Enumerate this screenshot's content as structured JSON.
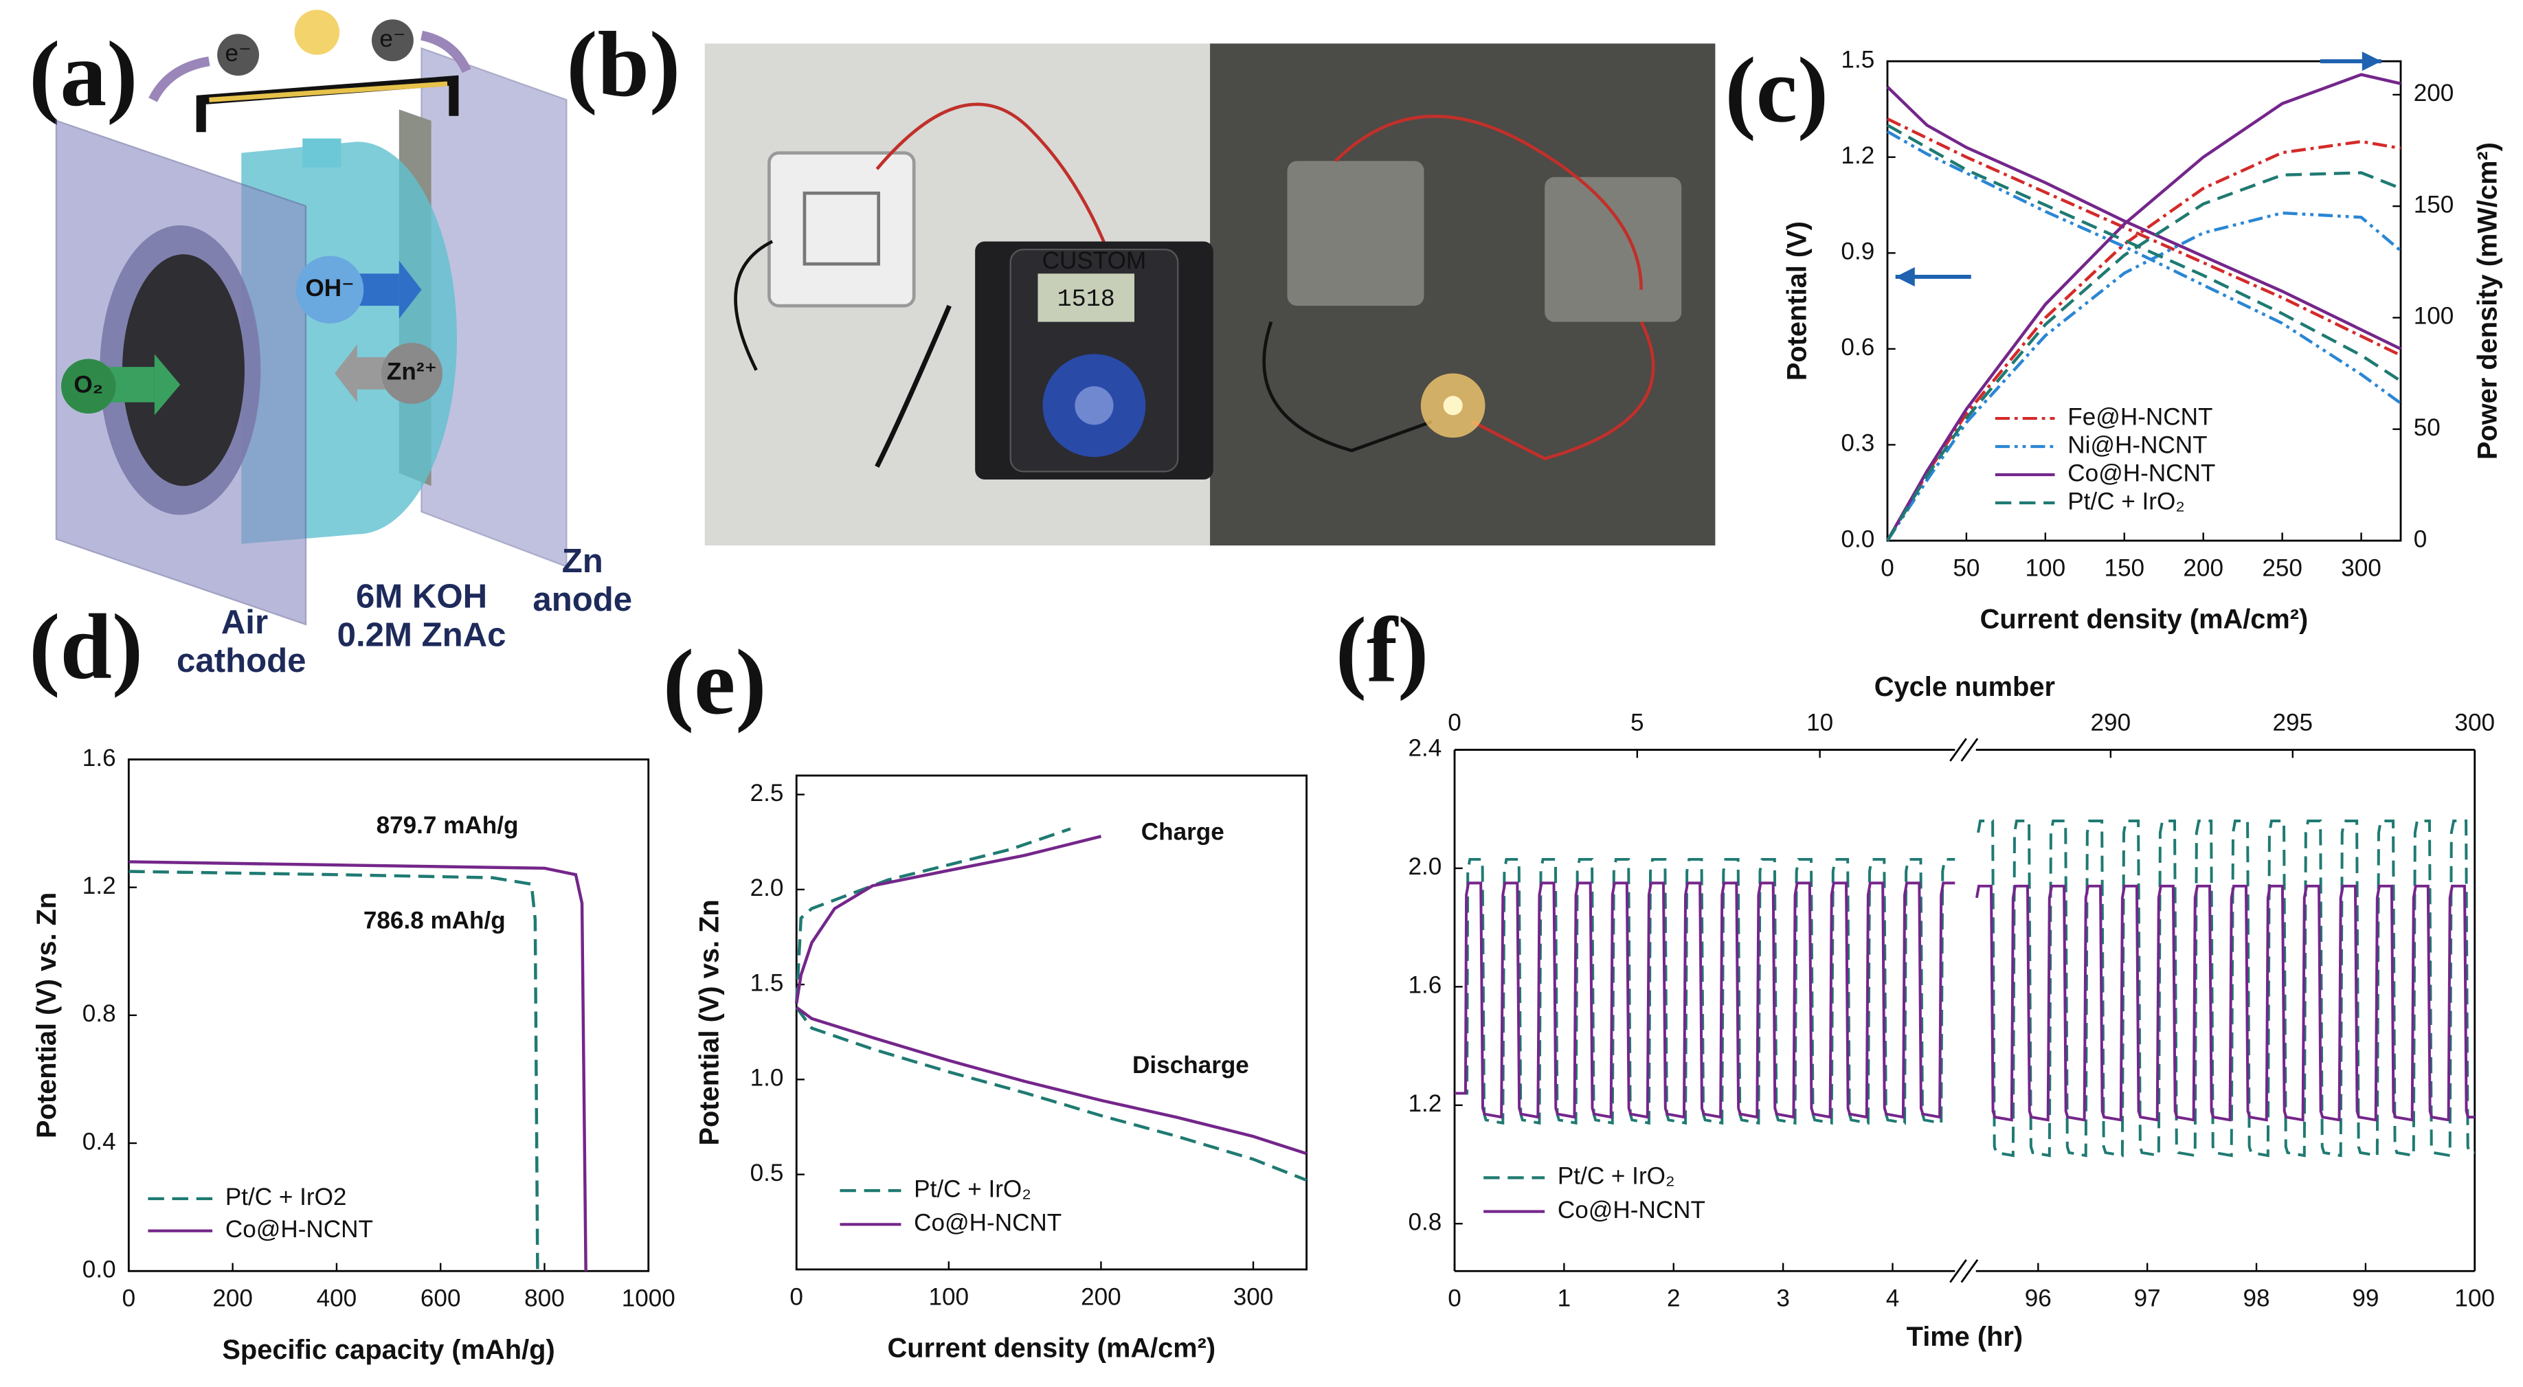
{
  "panel_labels": [
    "(a)",
    "(b)",
    "(c)",
    "(d)",
    "(e)",
    "(f)"
  ],
  "schematic": {
    "electron": "e⁻",
    "hydroxide": "OH⁻",
    "zinc_ion": "Zn²⁺",
    "oxygen": "O₂",
    "cathode": [
      "Air",
      "cathode"
    ],
    "electrolyte": [
      "6M KOH",
      "0.2M ZnAc"
    ],
    "anode": [
      "Zn",
      "anode"
    ]
  },
  "photo": {
    "meter_brand": "CUSTOM",
    "meter_reading": "1518"
  },
  "chart_data": [
    {
      "type": "line",
      "xlabel": "Current density (mA/cm²)",
      "ylabel": "Potential (V)",
      "y2label": "Power density (mW/cm²)",
      "x": [
        0,
        25,
        50,
        100,
        150,
        200,
        250,
        300,
        325
      ],
      "xlim": [
        0,
        325
      ],
      "xticks": [
        0,
        50,
        100,
        150,
        200,
        250,
        300
      ],
      "ylim": [
        0,
        1.5
      ],
      "yticks": [
        {
          "value": 0,
          "label": "0.0"
        },
        0.3,
        0.6,
        0.9,
        1.2,
        1.5
      ],
      "y2lim": [
        0,
        215
      ],
      "y2ticks": [
        0,
        50,
        100,
        150,
        200
      ],
      "series": [
        {
          "name": "Fe@H-NCNT",
          "color": "#d42a2a",
          "dash": "dashdot",
          "values": [
            1.32,
            1.26,
            1.2,
            1.09,
            0.98,
            0.87,
            0.76,
            0.64,
            0.58
          ],
          "y2_values": [
            0,
            30,
            57,
            100,
            133,
            158,
            174,
            179,
            176
          ]
        },
        {
          "name": "Ni@H-NCNT",
          "color": "#2a86d4",
          "dash": "dashdotdot",
          "values": [
            1.28,
            1.21,
            1.15,
            1.03,
            0.92,
            0.8,
            0.68,
            0.52,
            0.43
          ],
          "y2_values": [
            0,
            27,
            53,
            92,
            120,
            138,
            147,
            145,
            130
          ]
        },
        {
          "name": "Co@H-NCNT",
          "color": "#74268a",
          "dash": "solid",
          "values": [
            1.42,
            1.3,
            1.23,
            1.12,
            1.0,
            0.89,
            0.78,
            0.66,
            0.6
          ],
          "y2_values": [
            0,
            31,
            59,
            106,
            142,
            172,
            196,
            209,
            205
          ]
        },
        {
          "name": "Pt/C + IrO₂",
          "color": "#1f7a72",
          "dash": "dash",
          "values": [
            1.3,
            1.23,
            1.16,
            1.05,
            0.94,
            0.83,
            0.71,
            0.58,
            0.5
          ],
          "y2_values": [
            0,
            29,
            55,
            97,
            128,
            151,
            164,
            165,
            158
          ]
        }
      ]
    },
    {
      "type": "line",
      "xlabel": "Specific capacity (mAh/g)",
      "ylabel": "Potential (V) vs. Zn",
      "xlim": [
        0,
        1000
      ],
      "xticks": [
        0,
        200,
        400,
        600,
        800,
        1000
      ],
      "ylim": [
        0,
        1.6
      ],
      "yticks": [
        {
          "value": 0,
          "label": "0.0"
        },
        0.4,
        0.8,
        1.2,
        1.6
      ],
      "series": [
        {
          "name": "Pt/C + IrO2",
          "color": "#1f7a72",
          "dash": "dash",
          "x": [
            0,
            400,
            700,
            775,
            782,
            786.8
          ],
          "values": [
            1.25,
            1.24,
            1.23,
            1.21,
            1.1,
            0
          ]
        },
        {
          "name": "Co@H-NCNT",
          "color": "#74268a",
          "dash": "solid",
          "x": [
            0,
            400,
            800,
            860,
            872,
            879.7
          ],
          "values": [
            1.28,
            1.27,
            1.26,
            1.24,
            1.15,
            0
          ]
        }
      ],
      "annotations": [
        {
          "text": "879.7 mAh/g",
          "color": "#74268a"
        },
        {
          "text": "786.8 mAh/g",
          "color": "#1f8a84"
        }
      ]
    },
    {
      "type": "line",
      "xlabel": "Current density (mA/cm²)",
      "ylabel": "Potential (V) vs. Zn",
      "xlim": [
        0,
        335
      ],
      "xticks": [
        0,
        100,
        200,
        300
      ],
      "ylim": [
        0,
        2.6
      ],
      "yticks": [
        0.5,
        {
          "value": 1,
          "label": "1.0"
        },
        1.5,
        {
          "value": 2,
          "label": "2.0"
        },
        2.5
      ],
      "series": [
        {
          "name": "Pt/C + IrO₂",
          "color": "#1f7a72",
          "dash": "dash",
          "charge": {
            "x": [
              0,
              3,
              10,
              30,
              60,
              100,
              140,
              180
            ],
            "values": [
              1.4,
              1.85,
              1.9,
              1.96,
              2.05,
              2.13,
              2.21,
              2.32
            ]
          },
          "discharge": {
            "x": [
              0,
              10,
              50,
              100,
              150,
              200,
              250,
              300,
              335
            ],
            "values": [
              1.38,
              1.27,
              1.16,
              1.04,
              0.93,
              0.81,
              0.7,
              0.58,
              0.47
            ]
          }
        },
        {
          "name": "Co@H-NCNT",
          "color": "#74268a",
          "dash": "solid",
          "charge": {
            "x": [
              0,
              3,
              10,
              25,
              50,
              100,
              150,
              200
            ],
            "values": [
              1.4,
              1.55,
              1.72,
              1.9,
              2.02,
              2.1,
              2.18,
              2.28
            ]
          },
          "discharge": {
            "x": [
              0,
              10,
              50,
              100,
              150,
              200,
              250,
              300,
              335
            ],
            "values": [
              1.38,
              1.32,
              1.22,
              1.1,
              0.99,
              0.89,
              0.8,
              0.7,
              0.61
            ]
          }
        }
      ],
      "annotations": [
        {
          "text": "Charge",
          "color": "#1d2a5a"
        },
        {
          "text": "Discharge",
          "color": "#1d2a5a"
        }
      ]
    },
    {
      "type": "cycling",
      "xlabel": "Time (hr)",
      "x2label": "Cycle number",
      "ylim": [
        0.64,
        2.4
      ],
      "yticks": [
        0.8,
        1.2,
        1.6,
        {
          "value": 2,
          "label": "2.0"
        },
        2.4
      ],
      "segments": [
        {
          "xlim": [
            0,
            4.57
          ],
          "xticks": [
            0,
            1,
            2,
            3,
            4
          ],
          "x2lim": [
            0,
            13.7
          ],
          "x2ticks": [
            0,
            5,
            10
          ]
        },
        {
          "xlim": [
            95.43,
            100
          ],
          "xticks": [
            96,
            97,
            98,
            99,
            100
          ],
          "x2lim": [
            286.3,
            300
          ],
          "x2ticks": [
            290,
            295,
            300
          ]
        }
      ],
      "series": [
        {
          "name": "Pt/C + IrO₂",
          "color": "#1f7a72",
          "dash": "dash",
          "rest": 1.24,
          "charge": [
            2.03,
            2.16
          ],
          "discharge": [
            1.15,
            1.04
          ]
        },
        {
          "name": "Co@H-NCNT",
          "color": "#74268a",
          "dash": "solid",
          "rest": 1.24,
          "charge": [
            1.95,
            1.94
          ],
          "discharge": [
            1.17,
            1.16
          ]
        }
      ]
    }
  ]
}
